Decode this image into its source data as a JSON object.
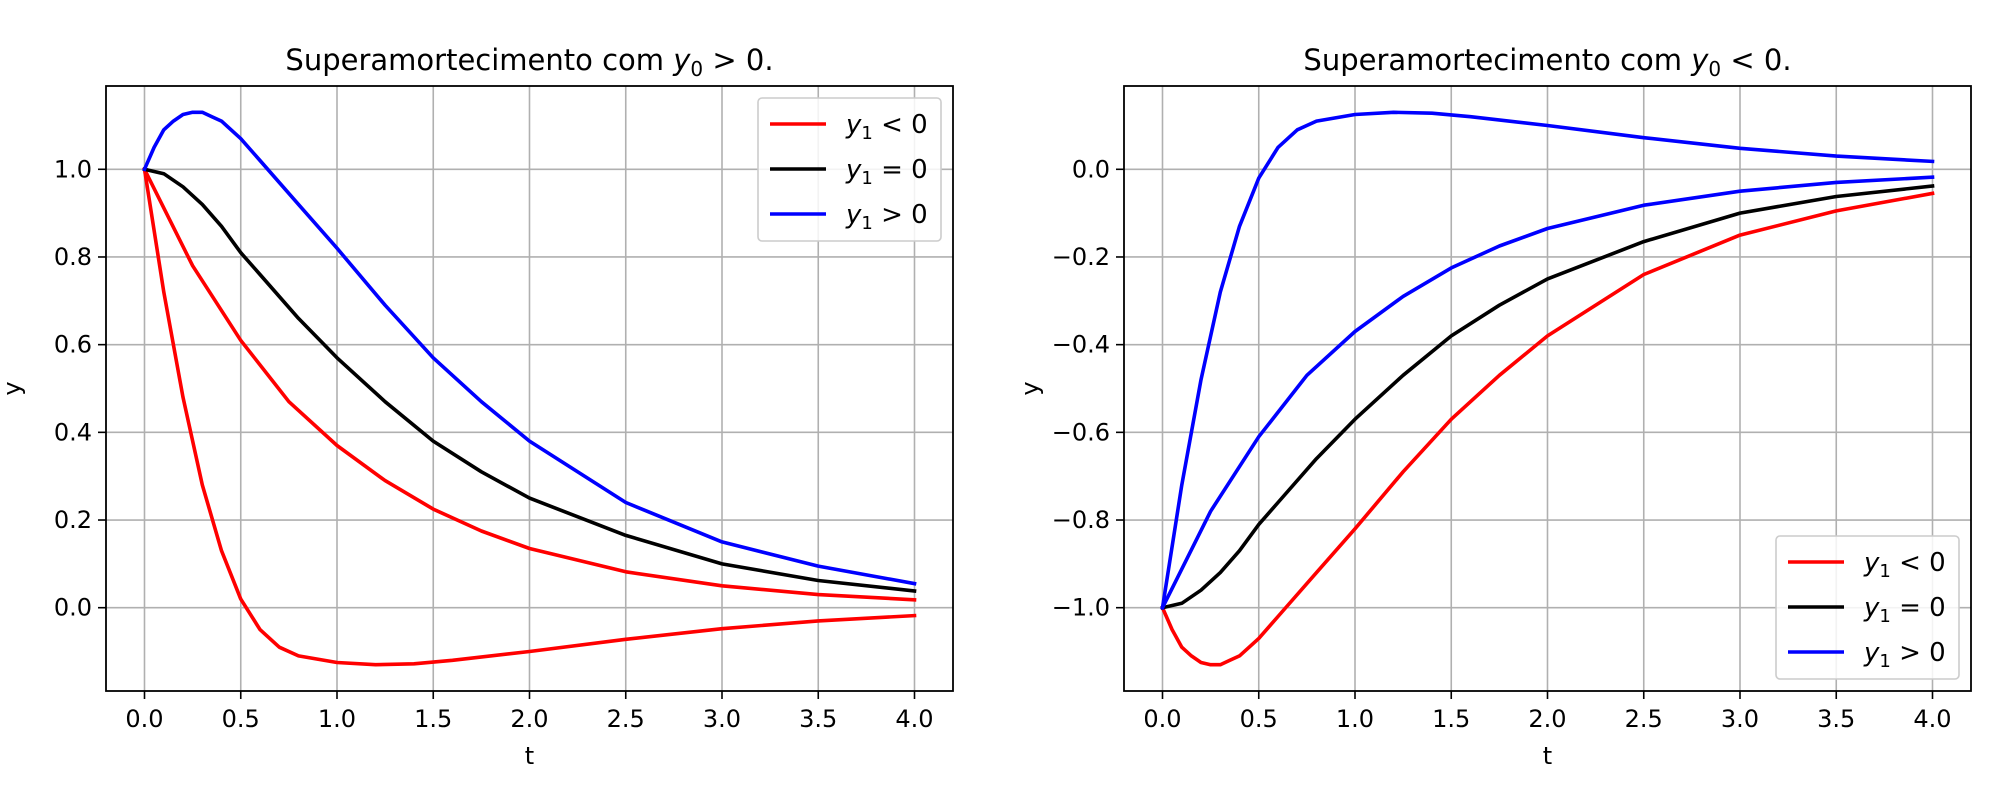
{
  "chart_data": [
    {
      "type": "line",
      "title_main": "Superamortecimento com ",
      "title_math": "y",
      "title_sub": "0",
      "title_rel": " > 0.",
      "xlabel": "t",
      "ylabel": "y",
      "xlim": [
        -0.2,
        4.2
      ],
      "ylim": [
        -0.19,
        1.19
      ],
      "xticks": [
        "0.0",
        "0.5",
        "1.0",
        "1.5",
        "2.0",
        "2.5",
        "3.0",
        "3.5",
        "4.0"
      ],
      "yticks": [
        "0.0",
        "0.2",
        "0.4",
        "0.6",
        "0.8",
        "1.0"
      ],
      "grid": true,
      "legend": "upper right",
      "legend_entries": [
        {
          "math": "y",
          "sub": "1",
          "rel": " < 0",
          "color": "#ff0000"
        },
        {
          "math": "y",
          "sub": "1",
          "rel": " = 0",
          "color": "#000000"
        },
        {
          "math": "y",
          "sub": "1",
          "rel": " > 0",
          "color": "#0000ff"
        }
      ],
      "series": [
        {
          "color": "#ff0000",
          "x": [
            0,
            0.1,
            0.2,
            0.3,
            0.4,
            0.5,
            0.6,
            0.7,
            0.8,
            1.0,
            1.2,
            1.4,
            1.6,
            2.0,
            2.5,
            3.0,
            3.5,
            4.0
          ],
          "y": [
            1.0,
            0.72,
            0.48,
            0.28,
            0.13,
            0.02,
            -0.05,
            -0.09,
            -0.11,
            -0.125,
            -0.13,
            -0.128,
            -0.12,
            -0.1,
            -0.072,
            -0.048,
            -0.03,
            -0.018
          ]
        },
        {
          "color": "#ff0000",
          "x": [
            0,
            0.25,
            0.5,
            0.75,
            1.0,
            1.25,
            1.5,
            1.75,
            2.0,
            2.5,
            3.0,
            3.5,
            4.0
          ],
          "y": [
            1.0,
            0.78,
            0.61,
            0.47,
            0.37,
            0.29,
            0.225,
            0.175,
            0.135,
            0.082,
            0.05,
            0.03,
            0.018
          ]
        },
        {
          "color": "#000000",
          "x": [
            0,
            0.1,
            0.2,
            0.3,
            0.4,
            0.5,
            0.6,
            0.8,
            1.0,
            1.25,
            1.5,
            1.75,
            2.0,
            2.5,
            3.0,
            3.5,
            4.0
          ],
          "y": [
            1.0,
            0.99,
            0.96,
            0.92,
            0.87,
            0.81,
            0.76,
            0.66,
            0.57,
            0.47,
            0.38,
            0.31,
            0.25,
            0.165,
            0.1,
            0.062,
            0.038
          ]
        },
        {
          "color": "#0000ff",
          "x": [
            0,
            0.05,
            0.1,
            0.15,
            0.2,
            0.25,
            0.3,
            0.35,
            0.4,
            0.5,
            0.6,
            0.8,
            1.0,
            1.25,
            1.5,
            1.75,
            2.0,
            2.5,
            3.0,
            3.5,
            4.0
          ],
          "y": [
            1.0,
            1.05,
            1.09,
            1.11,
            1.125,
            1.13,
            1.13,
            1.12,
            1.11,
            1.07,
            1.02,
            0.92,
            0.82,
            0.69,
            0.57,
            0.47,
            0.38,
            0.24,
            0.15,
            0.095,
            0.055
          ]
        }
      ]
    },
    {
      "type": "line",
      "title_main": "Superamortecimento com ",
      "title_math": "y",
      "title_sub": "0",
      "title_rel": " < 0.",
      "xlabel": "t",
      "ylabel": "y",
      "xlim": [
        -0.2,
        4.2
      ],
      "ylim": [
        -1.19,
        0.19
      ],
      "xticks": [
        "0.0",
        "0.5",
        "1.0",
        "1.5",
        "2.0",
        "2.5",
        "3.0",
        "3.5",
        "4.0"
      ],
      "yticks": [
        "−1.0",
        "−0.8",
        "−0.6",
        "−0.4",
        "−0.2",
        "0.0"
      ],
      "grid": true,
      "legend": "lower right",
      "legend_entries": [
        {
          "math": "y",
          "sub": "1",
          "rel": " < 0",
          "color": "#ff0000"
        },
        {
          "math": "y",
          "sub": "1",
          "rel": " = 0",
          "color": "#000000"
        },
        {
          "math": "y",
          "sub": "1",
          "rel": " > 0",
          "color": "#0000ff"
        }
      ],
      "series": [
        {
          "color": "#ff0000",
          "x": [
            0,
            0.05,
            0.1,
            0.15,
            0.2,
            0.25,
            0.3,
            0.35,
            0.4,
            0.5,
            0.6,
            0.8,
            1.0,
            1.25,
            1.5,
            1.75,
            2.0,
            2.5,
            3.0,
            3.5,
            4.0
          ],
          "y": [
            -1.0,
            -1.05,
            -1.09,
            -1.11,
            -1.125,
            -1.13,
            -1.13,
            -1.12,
            -1.11,
            -1.07,
            -1.02,
            -0.92,
            -0.82,
            -0.69,
            -0.57,
            -0.47,
            -0.38,
            -0.24,
            -0.15,
            -0.095,
            -0.055
          ]
        },
        {
          "color": "#000000",
          "x": [
            0,
            0.1,
            0.2,
            0.3,
            0.4,
            0.5,
            0.6,
            0.8,
            1.0,
            1.25,
            1.5,
            1.75,
            2.0,
            2.5,
            3.0,
            3.5,
            4.0
          ],
          "y": [
            -1.0,
            -0.99,
            -0.96,
            -0.92,
            -0.87,
            -0.81,
            -0.76,
            -0.66,
            -0.57,
            -0.47,
            -0.38,
            -0.31,
            -0.25,
            -0.165,
            -0.1,
            -0.062,
            -0.038
          ]
        },
        {
          "color": "#0000ff",
          "x": [
            0,
            0.25,
            0.5,
            0.75,
            1.0,
            1.25,
            1.5,
            1.75,
            2.0,
            2.5,
            3.0,
            3.5,
            4.0
          ],
          "y": [
            -1.0,
            -0.78,
            -0.61,
            -0.47,
            -0.37,
            -0.29,
            -0.225,
            -0.175,
            -0.135,
            -0.082,
            -0.05,
            -0.03,
            -0.018
          ]
        },
        {
          "color": "#0000ff",
          "x": [
            0,
            0.1,
            0.2,
            0.3,
            0.4,
            0.5,
            0.6,
            0.7,
            0.8,
            1.0,
            1.2,
            1.4,
            1.6,
            2.0,
            2.5,
            3.0,
            3.5,
            4.0
          ],
          "y": [
            -1.0,
            -0.72,
            -0.48,
            -0.28,
            -0.13,
            -0.02,
            0.05,
            0.09,
            0.11,
            0.125,
            0.13,
            0.128,
            0.12,
            0.1,
            0.072,
            0.048,
            0.03,
            0.018
          ]
        }
      ]
    }
  ]
}
